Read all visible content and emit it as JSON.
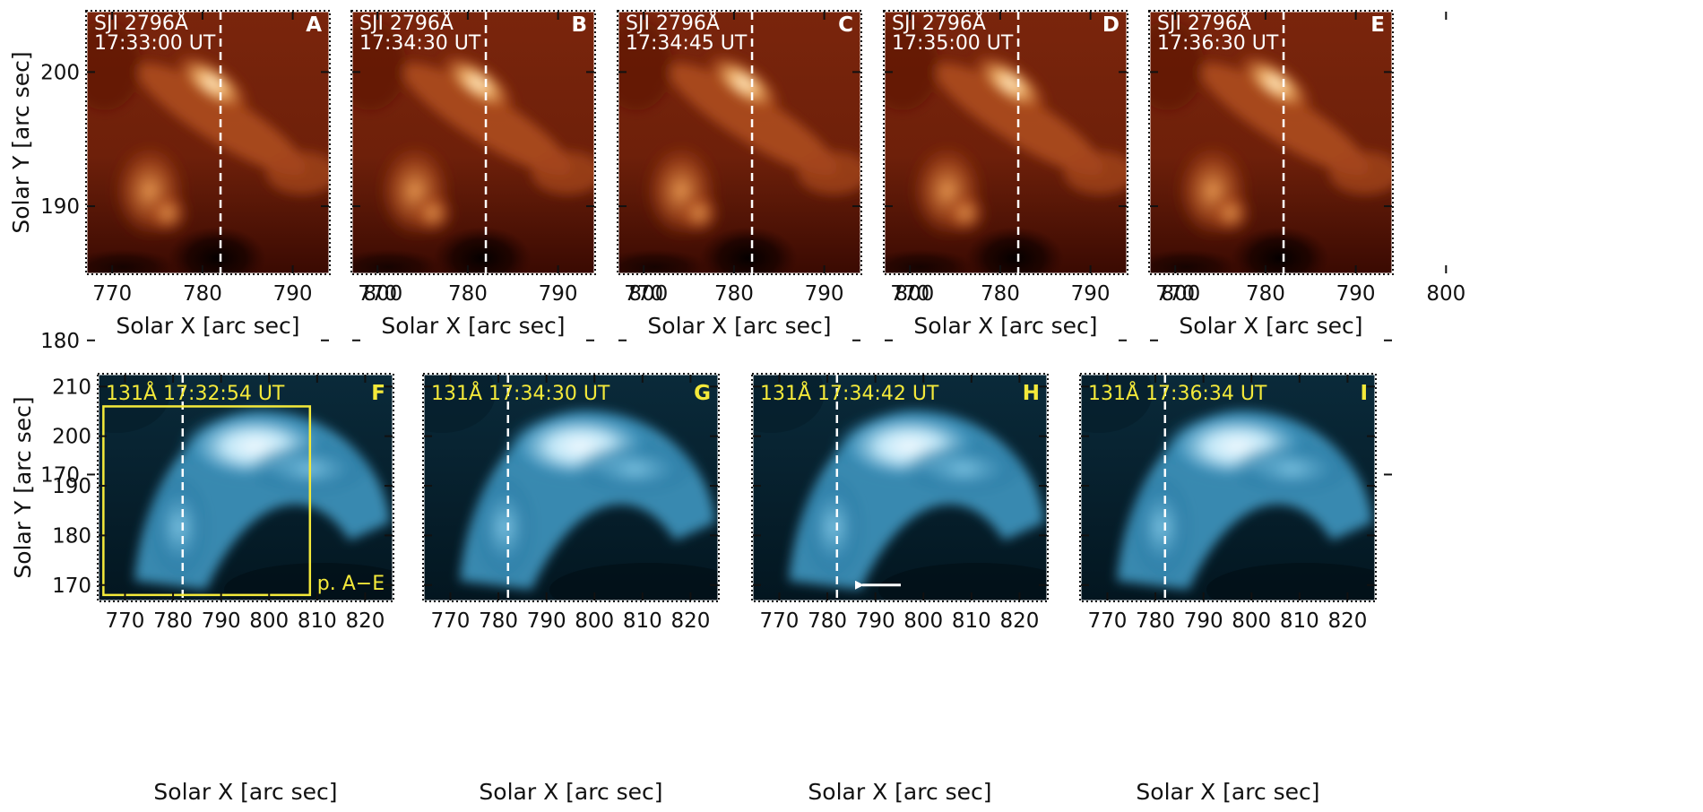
{
  "figure": {
    "top_row": {
      "xlabel": "Solar X [arc sec]",
      "ylabel": "Solar Y [arc sec]",
      "xticks": [
        "770",
        "780",
        "790",
        "800"
      ],
      "yticks": [
        "200",
        "190",
        "180",
        "170"
      ],
      "panels": [
        {
          "letter": "A",
          "line1": "SJI 2796Å",
          "line2": "17:33:00 UT",
          "arrow": false
        },
        {
          "letter": "B",
          "line1": "SJI 2796Å",
          "line2": "17:34:30 UT",
          "arrow": false
        },
        {
          "letter": "C",
          "line1": "SJI 2796Å",
          "line2": "17:34:45 UT",
          "arrow": false
        },
        {
          "letter": "D",
          "line1": "SJI 2796Å",
          "line2": "17:35:00 UT",
          "arrow": true
        },
        {
          "letter": "E",
          "line1": "SJI 2796Å",
          "line2": "17:36:30 UT",
          "arrow": false
        }
      ]
    },
    "bottom_row": {
      "xlabel": "Solar X [arc sec]",
      "ylabel": "Solar Y [arc sec]",
      "xticks": [
        "770",
        "780",
        "790",
        "800",
        "810",
        "820"
      ],
      "yticks": [
        "210",
        "200",
        "190",
        "180",
        "170"
      ],
      "box_label": "p. A−E",
      "panels": [
        {
          "letter": "F",
          "label": "131Å 17:32:54 UT",
          "arrow": false,
          "box": true
        },
        {
          "letter": "G",
          "label": "131Å 17:34:30 UT",
          "arrow": false,
          "box": false
        },
        {
          "letter": "H",
          "label": "131Å 17:34:42 UT",
          "arrow": true,
          "box": false
        },
        {
          "letter": "I",
          "label": "131Å 17:36:34 UT",
          "arrow": false,
          "box": false
        }
      ]
    },
    "colors": {
      "sji_dark": "#2a0500",
      "sji_mid": "#8a2e0e",
      "sji_bright": "#ffe6b8",
      "aia_dark": "#021018",
      "aia_mid": "#1a6f95",
      "aia_bright": "#eaf8ff",
      "box": "#f4e93a"
    }
  }
}
